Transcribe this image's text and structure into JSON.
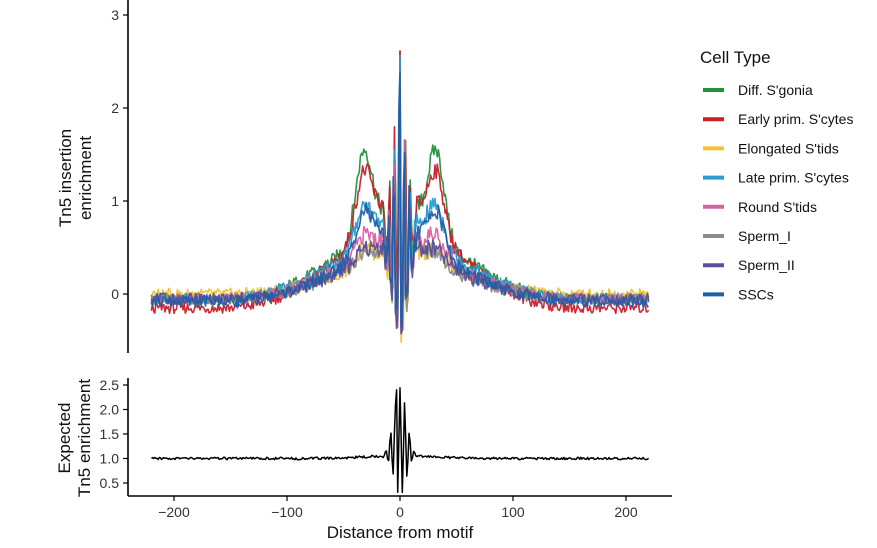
{
  "chart_data": [
    {
      "type": "line",
      "panel": "top",
      "ylabel_lines": [
        "Tn5 insertion",
        "enrichment"
      ],
      "xlim": [
        -240,
        240
      ],
      "ylim": [
        -0.65,
        3.05
      ],
      "yticks": [
        0,
        1,
        2,
        3
      ],
      "legend": {
        "title": "Cell Type",
        "placement": "right"
      },
      "series": [
        {
          "name": "Diff. S'gonia",
          "color": "#23903e",
          "center": 2.6,
          "side_peak": 2.0,
          "shoulder": 1.1,
          "base": -0.05
        },
        {
          "name": "Early prim. S'cytes",
          "color": "#cb1f2a",
          "center": 2.55,
          "side_peak": 1.85,
          "shoulder": 1.2,
          "base": -0.15
        },
        {
          "name": "Elongated S'tids",
          "color": "#f2c22f",
          "center": 2.3,
          "side_peak": 0.7,
          "shoulder": 0.55,
          "base": 0.0
        },
        {
          "name": "Late prim. S'cytes",
          "color": "#2b9bd2",
          "center": 2.5,
          "side_peak": 1.35,
          "shoulder": 0.95,
          "base": -0.05
        },
        {
          "name": "Round S'tids",
          "color": "#d961a3",
          "center": 2.3,
          "side_peak": 0.95,
          "shoulder": 0.75,
          "base": -0.05
        },
        {
          "name": "Sperm_I",
          "color": "#8c8c8c",
          "center": 2.2,
          "side_peak": 0.72,
          "shoulder": 0.6,
          "base": -0.05
        },
        {
          "name": "Sperm_II",
          "color": "#5a4f9a",
          "center": 2.25,
          "side_peak": 0.75,
          "shoulder": 0.65,
          "base": -0.05
        },
        {
          "name": "SSCs",
          "color": "#1f5fa8",
          "center": 2.45,
          "side_peak": 1.25,
          "shoulder": 0.8,
          "base": -0.08
        }
      ]
    },
    {
      "type": "line",
      "panel": "bottom",
      "xlabel": "Distance from motif",
      "ylabel_lines": [
        "Expected",
        "Tn5 enrichment"
      ],
      "xlim": [
        -240,
        240
      ],
      "ylim": [
        0.3,
        2.65
      ],
      "xticks": [
        -200,
        -100,
        0,
        100,
        200
      ],
      "xticklabels": [
        "−200",
        "−100",
        "0",
        "100",
        "200"
      ],
      "yticks": [
        0.5,
        1.0,
        1.5,
        2.0,
        2.5
      ],
      "yticklabels": [
        "0.5",
        "1.0",
        "1.5",
        "2.0",
        "2.5"
      ],
      "series": [
        {
          "name": "",
          "color": "#000000",
          "base": 1.0,
          "peak": 2.4
        }
      ]
    }
  ]
}
